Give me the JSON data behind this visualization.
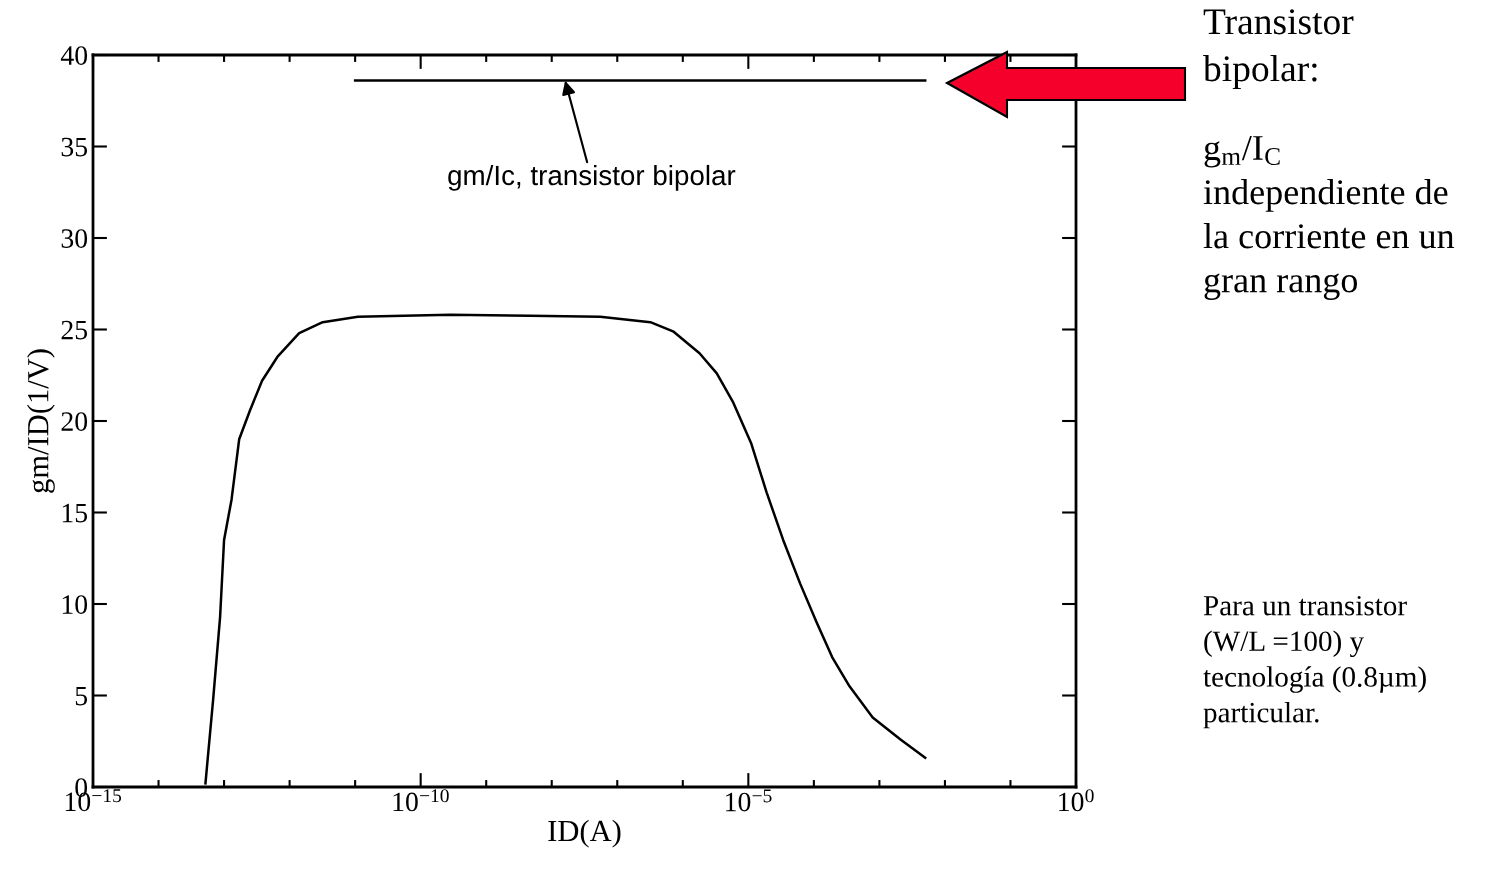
{
  "chart_data": {
    "type": "line",
    "xlabel": "ID(A)",
    "ylabel": "gm/ID(1/V)",
    "log": "x",
    "xlim": [
      1e-15,
      1
    ],
    "ylim": [
      0,
      40
    ],
    "xticks": [
      {
        "value": 1e-15,
        "label": "10$^{−15}$"
      },
      {
        "value": 1e-14,
        "label": null
      },
      {
        "value": 1e-13,
        "label": null
      },
      {
        "value": 1e-12,
        "label": null
      },
      {
        "value": 1e-11,
        "label": null
      },
      {
        "value": 1e-10,
        "label": "10$^{−10}$"
      },
      {
        "value": 1e-09,
        "label": null
      },
      {
        "value": 1e-08,
        "label": null
      },
      {
        "value": 1e-07,
        "label": null
      },
      {
        "value": 1e-06,
        "label": null
      },
      {
        "value": 1e-05,
        "label": "10$^{−5}$"
      },
      {
        "value": 0.0001,
        "label": null
      },
      {
        "value": 0.001,
        "label": null
      },
      {
        "value": 0.01,
        "label": null
      },
      {
        "value": 0.1,
        "label": null
      },
      {
        "value": 1,
        "label": "10$^{0}$"
      }
    ],
    "yticks": [
      0,
      5,
      10,
      15,
      20,
      25,
      30,
      35,
      40
    ],
    "grid": false,
    "legend": false,
    "marker": "none",
    "line_style": "solid",
    "series": [
      {
        "color": "#000000",
        "x": [
          5.2e-14,
          6.8e-14,
          8.7e-14,
          1e-13,
          1.3e-13,
          1.7e-13,
          2.5e-13,
          3.8e-13,
          6.5e-13,
          1.4e-12,
          3.2e-12,
          1.1e-11,
          2.8e-10,
          4.7e-09,
          5.5e-08,
          3.2e-07,
          7.1e-07,
          1.8e-06,
          3.3e-06,
          5.9e-06,
          1.1e-05,
          1.9e-05,
          3.4e-05,
          6.2e-05,
          0.00011,
          0.00019,
          0.00035,
          0.00079,
          0.0021,
          0.005
        ],
        "values": [
          0.2,
          4.75,
          9.3,
          13.5,
          15.7,
          19.0,
          20.6,
          22.2,
          23.5,
          24.8,
          25.4,
          25.7,
          25.8,
          25.75,
          25.7,
          25.4,
          24.9,
          23.7,
          22.6,
          21.0,
          18.8,
          16.1,
          13.5,
          11.1,
          9.0,
          7.1,
          5.5,
          3.8,
          2.6,
          1.6
        ]
      },
      {
        "color": "#000000",
        "x": [
          1e-11,
          0.005
        ],
        "values": [
          38.6,
          38.6
        ]
      }
    ],
    "annotations": [
      {
        "text": "gm/Ic, transistor bipolar",
        "x": 1.6e-08,
        "y": 38.6
      },
      "Transistor\nbipolar:",
      "g$_{m}$/I$_{C}$\nindependiente de\nla corriente en un\ngran rango",
      "Para un transistor\n(W/L =100) y\ntecnología (0.8µm)\nparticular."
    ]
  }
}
